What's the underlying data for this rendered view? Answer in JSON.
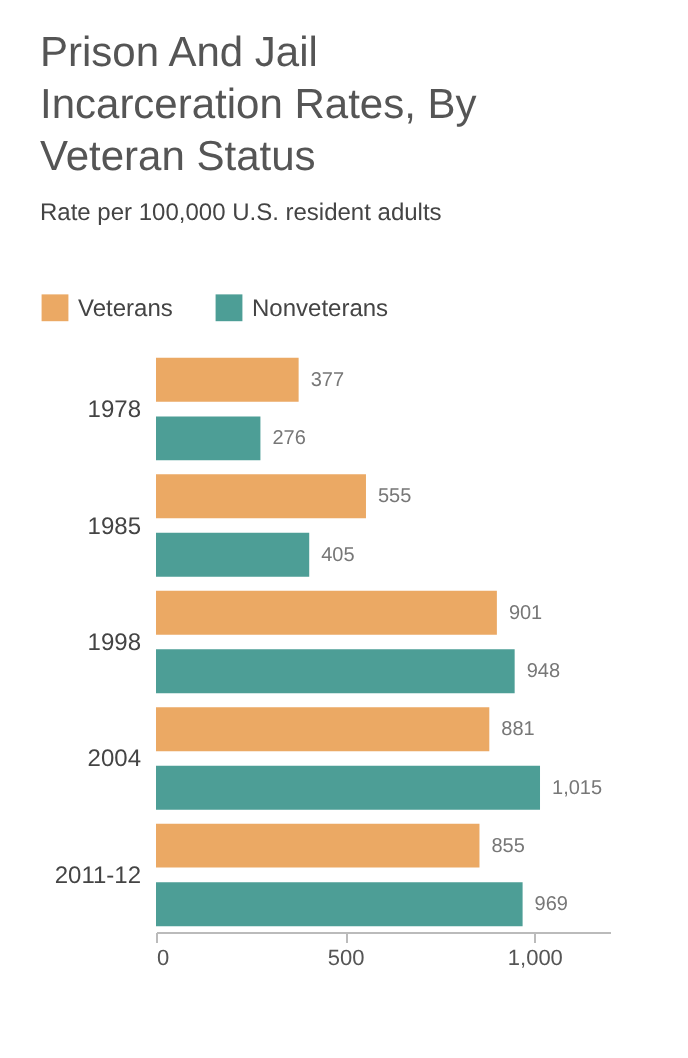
{
  "chart_data": {
    "type": "bar",
    "orientation": "horizontal",
    "title": "Prison And Jail Incarceration Rates, By Veteran Status",
    "subtitle": "Rate per 100,000 U.S. resident adults",
    "categories": [
      "1978",
      "1985",
      "1998",
      "2004",
      "2011-12"
    ],
    "series": [
      {
        "name": "Veterans",
        "color": "#eba964",
        "values": [
          377,
          555,
          901,
          881,
          855
        ],
        "value_labels": [
          "377",
          "555",
          "901",
          "881",
          "855"
        ]
      },
      {
        "name": "Nonveterans",
        "color": "#4d9e96",
        "values": [
          276,
          405,
          948,
          1015,
          969
        ],
        "value_labels": [
          "276",
          "405",
          "948",
          "1,015",
          "969"
        ]
      }
    ],
    "xlim": [
      0,
      1200
    ],
    "xticks": [
      0,
      500,
      {
        "value": 1000,
        "label": "1,000"
      }
    ],
    "grid": false,
    "legend": "top"
  }
}
